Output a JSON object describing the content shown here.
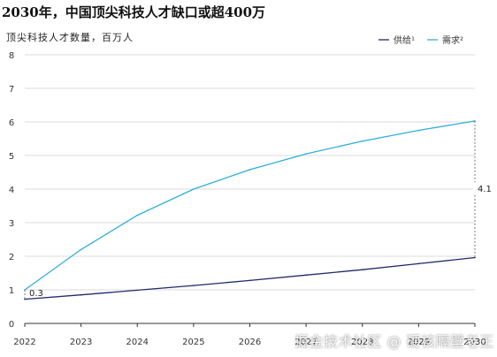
{
  "chart_data": {
    "type": "line",
    "title": "2030年，中国顶尖科技人才缺口或超400万",
    "ylabel": "顶尖科技人才数量，百万人",
    "x": [
      "2022",
      "2023",
      "2024",
      "2025",
      "2026",
      "2027",
      "2028",
      "2029",
      "2030"
    ],
    "ylim": [
      0,
      8
    ],
    "yticks": [
      0,
      1,
      2,
      3,
      4,
      5,
      6,
      7,
      8
    ],
    "grid": true,
    "legend_position": "top-right",
    "series": [
      {
        "name": "供给¹",
        "color": "#1f2a6b",
        "values": [
          0.72,
          0.85,
          0.99,
          1.13,
          1.28,
          1.44,
          1.6,
          1.78,
          1.96
        ]
      },
      {
        "name": "需求²",
        "color": "#2eaedc",
        "values": [
          1.0,
          2.2,
          3.22,
          4.0,
          4.58,
          5.05,
          5.43,
          5.75,
          6.03
        ]
      }
    ],
    "annotations": [
      {
        "label": "0.3",
        "x": "2022"
      },
      {
        "label": "4.1",
        "x": "2030"
      }
    ]
  },
  "watermark": "掘金技术社区 @ 硬核隔壁老王"
}
